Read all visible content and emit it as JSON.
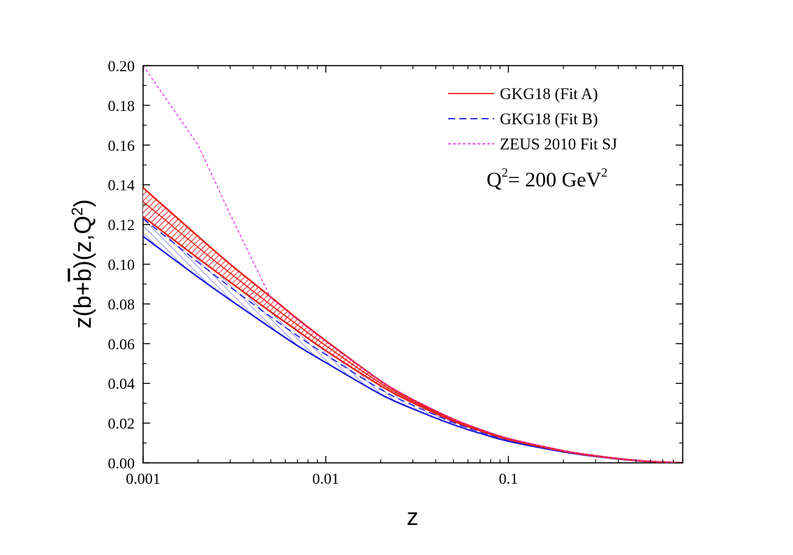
{
  "chart_data": {
    "type": "line",
    "title": "",
    "xlabel": "z",
    "ylabel": {
      "main": "z(b+",
      "bbar": "b",
      "rest": ")(z,Q",
      "sup": "2",
      "close": ")"
    },
    "x_scale": "log",
    "xlim": [
      0.001,
      0.9
    ],
    "ylim": [
      0.0,
      0.2
    ],
    "x_ticks": [
      {
        "value": 0.001,
        "label": "0.001"
      },
      {
        "value": 0.01,
        "label": "0.01"
      },
      {
        "value": 0.1,
        "label": "0.1"
      }
    ],
    "y_ticks": [
      {
        "value": 0.0,
        "label": "0.00"
      },
      {
        "value": 0.02,
        "label": "0.02"
      },
      {
        "value": 0.04,
        "label": "0.04"
      },
      {
        "value": 0.06,
        "label": "0.06"
      },
      {
        "value": 0.08,
        "label": "0.08"
      },
      {
        "value": 0.1,
        "label": "0.10"
      },
      {
        "value": 0.12,
        "label": "0.12"
      },
      {
        "value": 0.14,
        "label": "0.14"
      },
      {
        "value": 0.16,
        "label": "0.16"
      },
      {
        "value": 0.18,
        "label": "0.18"
      },
      {
        "value": 0.2,
        "label": "0.20"
      }
    ],
    "grid": false,
    "legend_position": "top-right",
    "annotation": {
      "q": "Q",
      "sup1": "2",
      "mid": "= 200 GeV",
      "sup2": "2"
    },
    "x": [
      0.001,
      0.002,
      0.003,
      0.005,
      0.007,
      0.01,
      0.02,
      0.03,
      0.05,
      0.07,
      0.1,
      0.2,
      0.3,
      0.5,
      0.7,
      0.9
    ],
    "series": [
      {
        "name": "GKG18 (Fit A)",
        "color": "#e8221b",
        "dash": "solid",
        "central": [
          0.1315,
          0.1085,
          0.0955,
          0.0795,
          0.0695,
          0.059,
          0.04,
          0.031,
          0.0215,
          0.0165,
          0.012,
          0.006,
          0.0035,
          0.0012,
          0.0004,
          0.0
        ],
        "upper": [
          0.1385,
          0.114,
          0.1,
          0.0835,
          0.0725,
          0.0615,
          0.0412,
          0.0318,
          0.022,
          0.0168,
          0.0122,
          0.0061,
          0.0036,
          0.0012,
          0.0004,
          0.0
        ],
        "lower": [
          0.124,
          0.103,
          0.091,
          0.076,
          0.0665,
          0.0565,
          0.0388,
          0.0302,
          0.021,
          0.0162,
          0.0118,
          0.0059,
          0.0034,
          0.0012,
          0.0004,
          0.0
        ]
      },
      {
        "name": "GKG18 (Fit B)",
        "color": "#1a1adc",
        "dash": "dashed",
        "central": [
          0.123,
          0.101,
          0.0885,
          0.0735,
          0.064,
          0.0545,
          0.037,
          0.029,
          0.0203,
          0.0157,
          0.0114,
          0.0057,
          0.0033,
          0.0011,
          0.0004,
          0.0
        ],
        "upper": [
          0.131,
          0.1075,
          0.0945,
          0.0785,
          0.0685,
          0.0585,
          0.0395,
          0.0308,
          0.0214,
          0.0165,
          0.012,
          0.006,
          0.0035,
          0.0012,
          0.0004,
          0.0
        ],
        "lower": [
          0.114,
          0.0935,
          0.082,
          0.068,
          0.059,
          0.0505,
          0.0345,
          0.0272,
          0.0192,
          0.0149,
          0.0109,
          0.0055,
          0.0032,
          0.0011,
          0.0004,
          0.0
        ]
      },
      {
        "name": "ZEUS 2010 Fit SJ",
        "color": "#e22ce0",
        "dash": "short-dashed",
        "central": [
          0.2,
          0.16,
          0.125,
          0.083,
          0.072,
          0.061,
          0.041,
          0.032,
          0.022,
          0.017,
          0.0122,
          0.006,
          0.0035,
          0.0012,
          0.0004,
          0.0
        ]
      }
    ]
  }
}
